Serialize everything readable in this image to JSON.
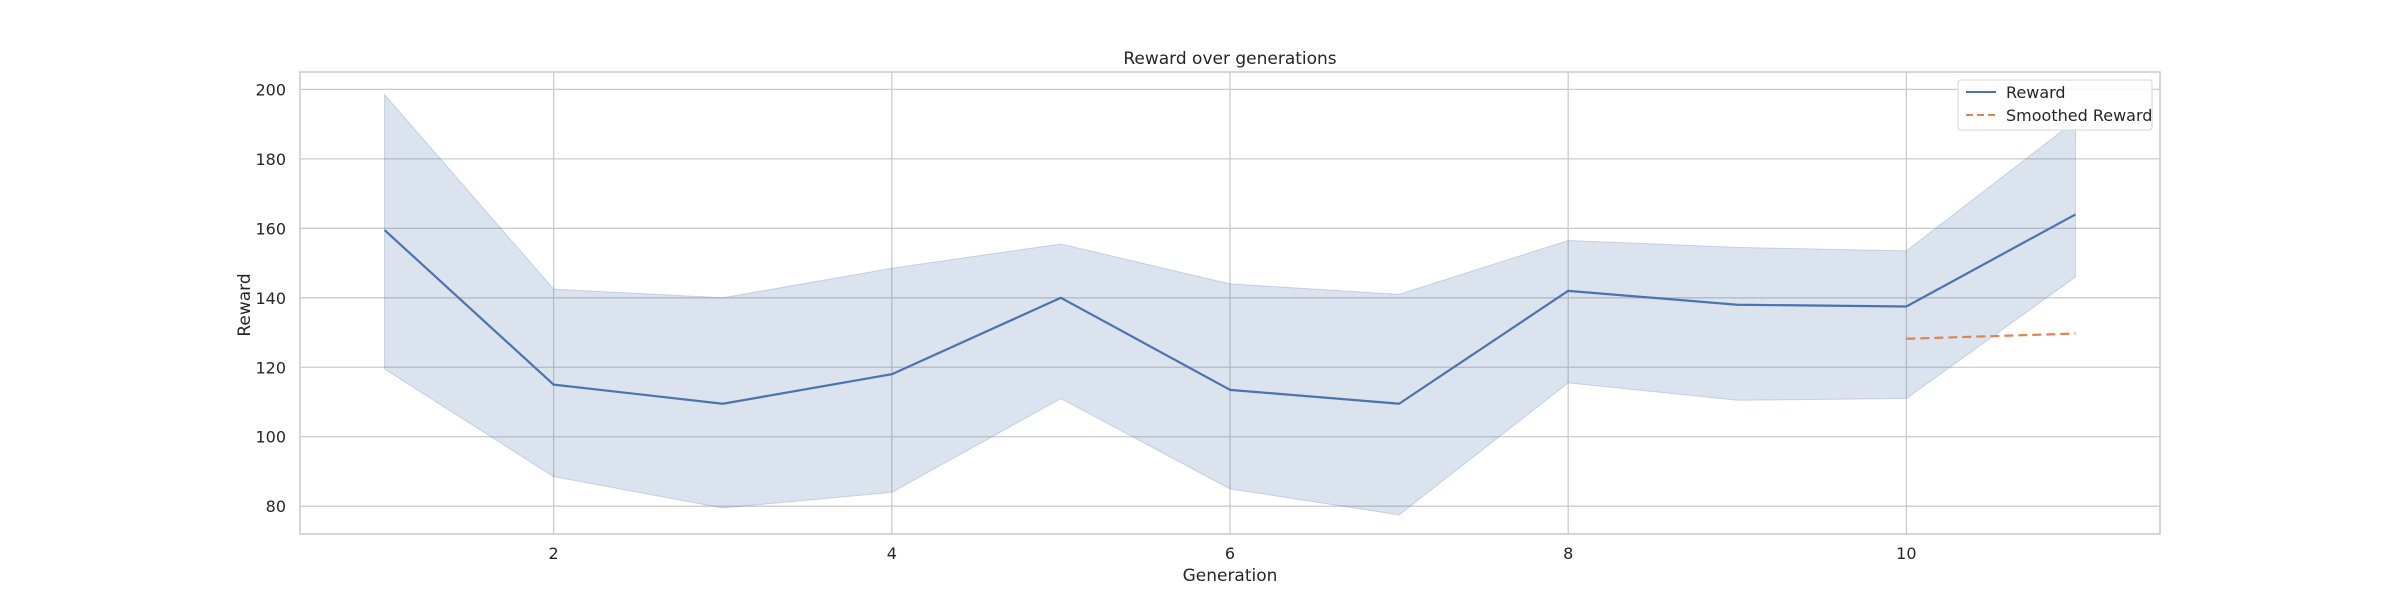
{
  "chart_data": {
    "type": "line",
    "title": "Reward over generations",
    "xlabel": "Generation",
    "ylabel": "Reward",
    "xlim": [
      0.5,
      11.5
    ],
    "ylim": [
      72,
      205
    ],
    "xticks": [
      2,
      4,
      6,
      8,
      10
    ],
    "yticks": [
      80,
      100,
      120,
      140,
      160,
      180,
      200
    ],
    "grid": true,
    "legend_position": "top-right",
    "series": [
      {
        "name": "Reward",
        "style": "solid",
        "color": "#4c72b0",
        "x": [
          1,
          2,
          3,
          4,
          5,
          6,
          7,
          8,
          9,
          10,
          11
        ],
        "y": [
          159.5,
          115,
          109.5,
          118,
          140,
          113.5,
          109.5,
          142,
          138,
          137.5,
          164
        ],
        "band_lower": [
          119.5,
          88.5,
          79.5,
          84,
          111,
          85,
          77.5,
          115.5,
          110.5,
          111,
          146
        ],
        "band_upper": [
          198.5,
          142.5,
          140,
          148.5,
          155.5,
          144,
          141,
          156.5,
          154.5,
          153.5,
          191
        ],
        "band_color": "#4c72b0"
      },
      {
        "name": "Smoothed Reward",
        "style": "dashed",
        "color": "#dd8452",
        "x": [
          10,
          11
        ],
        "y": [
          128.2,
          129.7
        ]
      }
    ]
  }
}
